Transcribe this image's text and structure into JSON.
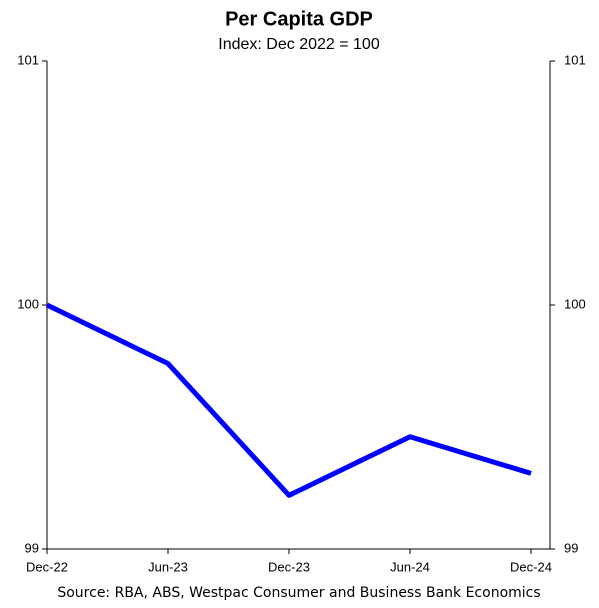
{
  "chart_data": {
    "type": "line",
    "title": "Per Capita GDP",
    "subtitle": "Index: Dec 2022 = 100",
    "source": "Source: RBA, ABS, Westpac Consumer and Business Bank Economics",
    "categories": [
      "Dec-22",
      "Jun-23",
      "Dec-23",
      "Jun-24",
      "Dec-24"
    ],
    "series": [
      {
        "name": "Per Capita GDP",
        "color": "#0000ff",
        "values": [
          100,
          99.76,
          99.22,
          99.46,
          99.31
        ]
      }
    ],
    "ylim": [
      99,
      101
    ],
    "yticks": [
      99,
      100,
      101
    ],
    "y2lim": [
      99,
      101
    ],
    "y2ticks": [
      99,
      100,
      101
    ],
    "grid": false
  }
}
